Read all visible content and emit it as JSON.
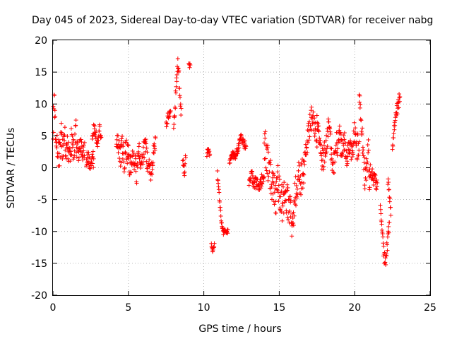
{
  "chart_data": {
    "type": "scatter",
    "title": "Day 045 of 2023, Sidereal Day-to-day VTEC variation (SDTVAR) for receiver nabg",
    "xlabel": "GPS time / hours",
    "ylabel": "SDTVAR / TECUs",
    "xlim": [
      0,
      25
    ],
    "ylim": [
      -20,
      20
    ],
    "x_ticks": [
      0,
      5,
      10,
      15,
      20,
      25
    ],
    "y_ticks": [
      -20,
      -15,
      -10,
      -5,
      0,
      5,
      10,
      15,
      20
    ],
    "grid": true,
    "marker": "+",
    "color": "#ff0000",
    "series": [
      {
        "name": "SDTVAR nabg",
        "segments": [
          {
            "x0": 0.0,
            "x1": 1.6,
            "base": [
              7,
              10,
              4,
              3,
              2,
              5,
              3,
              6,
              2,
              4,
              1,
              3,
              5,
              2,
              6,
              3
            ],
            "spread": 2.5
          },
          {
            "x0": 1.6,
            "x1": 2.1,
            "base": [
              3,
              2,
              4,
              3,
              2,
              3
            ],
            "spread": 1.2
          },
          {
            "x0": 2.2,
            "x1": 2.7,
            "base": [
              1,
              2,
              1,
              0,
              2,
              1
            ],
            "spread": 1.2
          },
          {
            "x0": 2.6,
            "x1": 3.2,
            "base": [
              5,
              6,
              5,
              4,
              6,
              5
            ],
            "spread": 1.0
          },
          {
            "x0": 4.2,
            "x1": 5.0,
            "base": [
              5,
              3,
              2,
              4,
              1,
              3,
              2
            ],
            "spread": 2.0
          },
          {
            "x0": 5.0,
            "x1": 6.8,
            "base": [
              1,
              0,
              2,
              1,
              -1,
              3,
              0,
              2,
              4,
              1,
              0,
              -1,
              2,
              4
            ],
            "spread": 1.6
          },
          {
            "x0": 7.5,
            "x1": 7.8,
            "base": [
              7,
              8,
              9
            ],
            "spread": 0.8
          },
          {
            "x0": 8.0,
            "x1": 8.5,
            "base": [
              6,
              10,
              14,
              17,
              12,
              8
            ],
            "spread": 1.5
          },
          {
            "x0": 8.6,
            "x1": 8.8,
            "base": [
              1,
              0,
              -1,
              2
            ],
            "spread": 0.8
          },
          {
            "x0": 9.0,
            "x1": 9.1,
            "base": [
              16,
              16
            ],
            "spread": 0.5
          },
          {
            "x0": 10.2,
            "x1": 10.4,
            "base": [
              2,
              3,
              2
            ],
            "spread": 0.6
          },
          {
            "x0": 10.5,
            "x1": 10.7,
            "base": [
              -12,
              -13,
              -12
            ],
            "spread": 0.4
          },
          {
            "x0": 10.9,
            "x1": 11.3,
            "base": [
              -1,
              -4,
              -7,
              -9,
              -10
            ],
            "spread": 0.6
          },
          {
            "x0": 11.3,
            "x1": 11.6,
            "base": [
              -10,
              -10,
              -10
            ],
            "spread": 0.3
          },
          {
            "x0": 11.7,
            "x1": 12.3,
            "base": [
              1,
              2,
              2,
              3
            ],
            "spread": 0.6
          },
          {
            "x0": 12.3,
            "x1": 12.8,
            "base": [
              3,
              5,
              4,
              3
            ],
            "spread": 0.8
          },
          {
            "x0": 13.0,
            "x1": 14.0,
            "base": [
              -2,
              -1,
              -3,
              -2,
              -3,
              -2,
              -1
            ],
            "spread": 1.0
          },
          {
            "x0": 14.0,
            "x1": 16.6,
            "base": [
              4,
              2,
              0,
              -2,
              -3,
              -5,
              -2,
              -4,
              -6,
              -3,
              -5,
              -7,
              -8,
              -6,
              -3,
              -1,
              -2,
              0
            ],
            "spread": 2.8
          },
          {
            "x0": 16.6,
            "x1": 17.5,
            "base": [
              -1,
              2,
              5,
              7,
              8,
              6,
              4
            ],
            "spread": 2.0
          },
          {
            "x0": 17.5,
            "x1": 19.0,
            "base": [
              9,
              4,
              2,
              1,
              3,
              5,
              7,
              2,
              0,
              3,
              4,
              6
            ],
            "spread": 2.2
          },
          {
            "x0": 19.0,
            "x1": 20.3,
            "base": [
              5,
              2,
              4,
              1,
              3,
              2,
              6,
              3,
              4
            ],
            "spread": 2.0
          },
          {
            "x0": 20.3,
            "x1": 21.0,
            "base": [
              13,
              9,
              5,
              1,
              -2,
              0,
              3,
              -3
            ],
            "spread": 2.0
          },
          {
            "x0": 21.0,
            "x1": 21.5,
            "base": [
              0,
              -1,
              -2,
              -3
            ],
            "spread": 1.2
          },
          {
            "x0": 21.7,
            "x1": 22.3,
            "base": [
              -6,
              -9,
              -12,
              -14,
              -15,
              -13,
              -11,
              -9
            ],
            "spread": 1.2
          },
          {
            "x0": 22.2,
            "x1": 22.4,
            "base": [
              -2,
              -4,
              -7
            ],
            "spread": 0.8
          },
          {
            "x0": 22.5,
            "x1": 23.0,
            "base": [
              4,
              6,
              8,
              10,
              11
            ],
            "spread": 1.2
          }
        ]
      }
    ]
  }
}
